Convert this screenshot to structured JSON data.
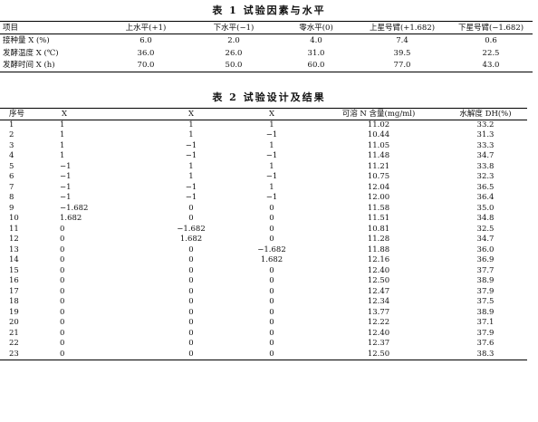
{
  "table1": {
    "caption": "表 1   试验因素与水平",
    "headers": [
      "项目",
      "上水平(+1)",
      "下水平(−1)",
      "零水平(0)",
      "上星号臂(+1.682)",
      "下星号臂(−1.682)"
    ],
    "rows": [
      [
        "接种量 X (%)",
        "6.0",
        "2.0",
        "4.0",
        "7.4",
        "0.6"
      ],
      [
        "发酵温度 X (℃)",
        "36.0",
        "26.0",
        "31.0",
        "39.5",
        "22.5"
      ],
      [
        "发酵时间 X (h)",
        "70.0",
        "50.0",
        "60.0",
        "77.0",
        "43.0"
      ]
    ]
  },
  "table2": {
    "caption": "表 2   试验设计及结果",
    "headers": [
      "序号",
      "X",
      "X",
      "X",
      "可溶 N 含量(mg/ml)",
      "水解度 DH(%)"
    ],
    "rows": [
      [
        "1",
        "1",
        "1",
        "1",
        "11.02",
        "33.2"
      ],
      [
        "2",
        "1",
        "1",
        "−1",
        "10.44",
        "31.3"
      ],
      [
        "3",
        "1",
        "−1",
        "1",
        "11.05",
        "33.3"
      ],
      [
        "4",
        "1",
        "−1",
        "−1",
        "11.48",
        "34.7"
      ],
      [
        "5",
        "−1",
        "1",
        "1",
        "11.21",
        "33.8"
      ],
      [
        "6",
        "−1",
        "1",
        "−1",
        "10.75",
        "32.3"
      ],
      [
        "7",
        "−1",
        "−1",
        "1",
        "12.04",
        "36.5"
      ],
      [
        "8",
        "−1",
        "−1",
        "−1",
        "12.00",
        "36.4"
      ],
      [
        "9",
        "−1.682",
        "0",
        "0",
        "11.58",
        "35.0"
      ],
      [
        "10",
        "1.682",
        "0",
        "0",
        "11.51",
        "34.8"
      ],
      [
        "11",
        "0",
        "−1.682",
        "0",
        "10.81",
        "32.5"
      ],
      [
        "12",
        "0",
        "1.682",
        "0",
        "11.28",
        "34.7"
      ],
      [
        "13",
        "0",
        "0",
        "−1.682",
        "11.88",
        "36.0"
      ],
      [
        "14",
        "0",
        "0",
        "1.682",
        "12.16",
        "36.9"
      ],
      [
        "15",
        "0",
        "0",
        "0",
        "12.40",
        "37.7"
      ],
      [
        "16",
        "0",
        "0",
        "0",
        "12.50",
        "38.9"
      ],
      [
        "17",
        "0",
        "0",
        "0",
        "12.47",
        "37.9"
      ],
      [
        "18",
        "0",
        "0",
        "0",
        "12.34",
        "37.5"
      ],
      [
        "19",
        "0",
        "0",
        "0",
        "13.77",
        "38.9"
      ],
      [
        "20",
        "0",
        "0",
        "0",
        "12.22",
        "37.1"
      ],
      [
        "21",
        "0",
        "0",
        "0",
        "12.40",
        "37.9"
      ],
      [
        "22",
        "0",
        "0",
        "0",
        "12.37",
        "37.6"
      ],
      [
        "23",
        "0",
        "0",
        "0",
        "12.50",
        "38.3"
      ]
    ]
  }
}
